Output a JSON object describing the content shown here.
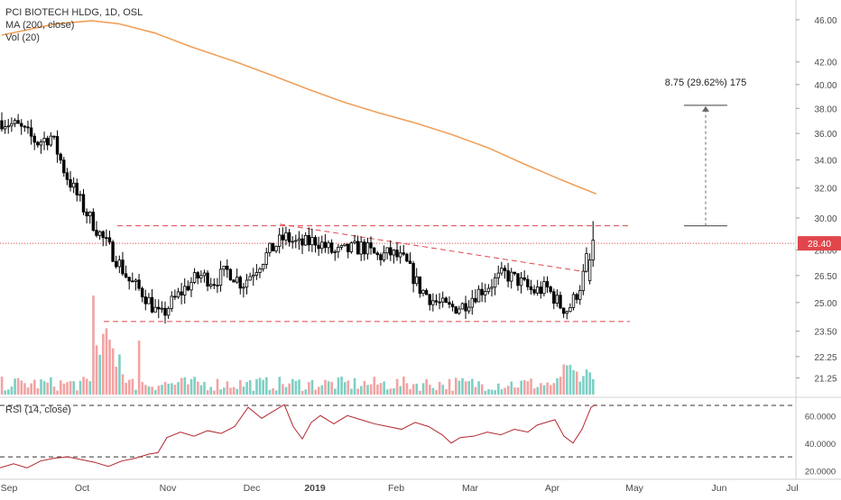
{
  "legend": {
    "symbol_line": "PCI BIOTECH HLDG, 1D, OSL",
    "ma_line": "MA (200, close)",
    "vol_line": "Vol (20)",
    "rsi_line": "RSI (14, close)"
  },
  "measurement_label": "8.75 (29.62%) 175",
  "price_tag": "28.40",
  "price_axis_ticks": [
    "46.00",
    "42.00",
    "40.00",
    "38.00",
    "36.00",
    "34.00",
    "32.00",
    "30.00",
    "28.00",
    "26.50",
    "25.00",
    "23.50",
    "22.25",
    "21.25"
  ],
  "rsi_axis_ticks": [
    "60.0000",
    "40.0000",
    "20.0000"
  ],
  "time_axis_ticks": [
    "Sep",
    "Oct",
    "Nov",
    "Dec",
    "2019",
    "Feb",
    "Mar",
    "Apr",
    "May",
    "Jun",
    "Jul"
  ],
  "colors": {
    "candle": "#000000",
    "ma": "#f0a05a",
    "support_resistance": "#e0464b",
    "price_tag_bg": "#e0464b",
    "volume_up": "#7ecfc4",
    "volume_down": "#f2a3a3",
    "rsi_line": "#b2262e",
    "measure": "#666666"
  },
  "chart_data": {
    "type": "candlestick",
    "title": "PCI BIOTECH HLDG, 1D, OSL",
    "price_axis": {
      "scale": "log",
      "range": [
        20.5,
        48.0
      ]
    },
    "last_price": 28.4,
    "resistance_level": 29.5,
    "support_level": 24.0,
    "measurement": {
      "from": 29.5,
      "to": 38.25,
      "change": 8.75,
      "percent": 29.62,
      "bars": 175
    },
    "series": [
      {
        "name": "MA (200, close)",
        "points": [
          [
            0,
            44.5
          ],
          [
            60,
            45.6
          ],
          [
            100,
            45.9
          ],
          [
            130,
            45.6
          ],
          [
            170,
            44.7
          ],
          [
            210,
            43.4
          ],
          [
            260,
            42.0
          ],
          [
            300,
            40.8
          ],
          [
            340,
            39.6
          ],
          [
            380,
            38.5
          ],
          [
            420,
            37.6
          ],
          [
            460,
            36.8
          ],
          [
            500,
            35.9
          ],
          [
            540,
            34.9
          ],
          [
            580,
            33.7
          ],
          [
            620,
            32.6
          ],
          [
            660,
            31.6
          ]
        ]
      },
      {
        "name": "RSI (14, close)",
        "points": [
          [
            0,
            22
          ],
          [
            15,
            25
          ],
          [
            30,
            22
          ],
          [
            45,
            27
          ],
          [
            60,
            29
          ],
          [
            75,
            30
          ],
          [
            90,
            28
          ],
          [
            105,
            26
          ],
          [
            120,
            23
          ],
          [
            135,
            27
          ],
          [
            150,
            29
          ],
          [
            165,
            32
          ],
          [
            175,
            33
          ],
          [
            185,
            44
          ],
          [
            200,
            48
          ],
          [
            215,
            45
          ],
          [
            230,
            49
          ],
          [
            245,
            47
          ],
          [
            260,
            52
          ],
          [
            275,
            66
          ],
          [
            290,
            58
          ],
          [
            305,
            64
          ],
          [
            315,
            68
          ],
          [
            325,
            52
          ],
          [
            335,
            43
          ],
          [
            345,
            55
          ],
          [
            355,
            60
          ],
          [
            370,
            54
          ],
          [
            385,
            60
          ],
          [
            400,
            57
          ],
          [
            415,
            54
          ],
          [
            430,
            52
          ],
          [
            445,
            50
          ],
          [
            460,
            55
          ],
          [
            475,
            52
          ],
          [
            490,
            46
          ],
          [
            500,
            40
          ],
          [
            510,
            44
          ],
          [
            525,
            45
          ],
          [
            540,
            48
          ],
          [
            555,
            46
          ],
          [
            570,
            50
          ],
          [
            585,
            48
          ],
          [
            595,
            53
          ],
          [
            605,
            55
          ],
          [
            615,
            57
          ],
          [
            625,
            45
          ],
          [
            635,
            40
          ],
          [
            645,
            50
          ],
          [
            655,
            66
          ],
          [
            660,
            68
          ]
        ]
      }
    ],
    "overlays": {
      "trendline": [
        [
          310,
          29.6
        ],
        [
          650,
          26.7
        ]
      ]
    }
  }
}
